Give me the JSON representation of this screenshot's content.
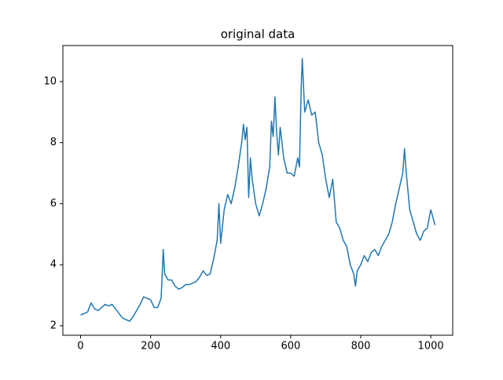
{
  "chart_data": {
    "type": "line",
    "title": "original data",
    "x": [
      0,
      10,
      20,
      30,
      40,
      50,
      60,
      70,
      80,
      90,
      100,
      110,
      120,
      130,
      140,
      150,
      160,
      170,
      180,
      190,
      200,
      210,
      220,
      230,
      236,
      240,
      250,
      260,
      270,
      280,
      290,
      300,
      310,
      320,
      330,
      340,
      350,
      360,
      370,
      380,
      390,
      395,
      400,
      410,
      420,
      430,
      440,
      450,
      460,
      465,
      470,
      475,
      480,
      485,
      490,
      500,
      510,
      520,
      530,
      540,
      545,
      550,
      555,
      560,
      565,
      570,
      580,
      590,
      600,
      610,
      620,
      625,
      630,
      633,
      640,
      650,
      660,
      670,
      680,
      690,
      700,
      710,
      720,
      730,
      740,
      750,
      760,
      770,
      780,
      785,
      790,
      800,
      810,
      820,
      830,
      840,
      850,
      860,
      870,
      880,
      890,
      900,
      910,
      920,
      925,
      930,
      940,
      950,
      960,
      970,
      980,
      990,
      1000,
      1005,
      1012
    ],
    "series": [
      {
        "color": "#1f77b4",
        "values": [
          2.35,
          2.4,
          2.45,
          2.75,
          2.55,
          2.5,
          2.6,
          2.7,
          2.65,
          2.7,
          2.55,
          2.4,
          2.25,
          2.2,
          2.15,
          2.3,
          2.5,
          2.7,
          2.95,
          2.9,
          2.85,
          2.6,
          2.6,
          2.9,
          4.5,
          3.7,
          3.5,
          3.5,
          3.3,
          3.2,
          3.25,
          3.35,
          3.35,
          3.4,
          3.45,
          3.6,
          3.8,
          3.65,
          3.7,
          4.2,
          4.8,
          6.0,
          4.7,
          5.8,
          6.3,
          6.0,
          6.5,
          7.2,
          8.0,
          8.6,
          8.1,
          8.5,
          6.2,
          7.5,
          6.8,
          6.0,
          5.6,
          6.0,
          6.5,
          7.2,
          8.7,
          8.2,
          9.5,
          8.3,
          7.6,
          8.5,
          7.5,
          7.0,
          7.0,
          6.9,
          7.5,
          7.2,
          9.8,
          10.75,
          9.0,
          9.4,
          8.9,
          9.0,
          8.0,
          7.6,
          6.8,
          6.2,
          6.8,
          5.4,
          5.2,
          4.8,
          4.6,
          4.0,
          3.7,
          3.3,
          3.8,
          4.0,
          4.3,
          4.1,
          4.4,
          4.5,
          4.3,
          4.6,
          4.8,
          5.0,
          5.4,
          6.0,
          6.5,
          7.0,
          7.8,
          7.0,
          5.8,
          5.4,
          5.0,
          4.8,
          5.1,
          5.2,
          5.8,
          5.6,
          5.3
        ]
      }
    ],
    "xlim": [
      -50.6,
      1062.6
    ],
    "ylim": [
      1.69,
      11.18
    ],
    "xticks": [
      0,
      200,
      400,
      600,
      800,
      1000
    ],
    "yticks": [
      2,
      4,
      6,
      8,
      10
    ]
  }
}
